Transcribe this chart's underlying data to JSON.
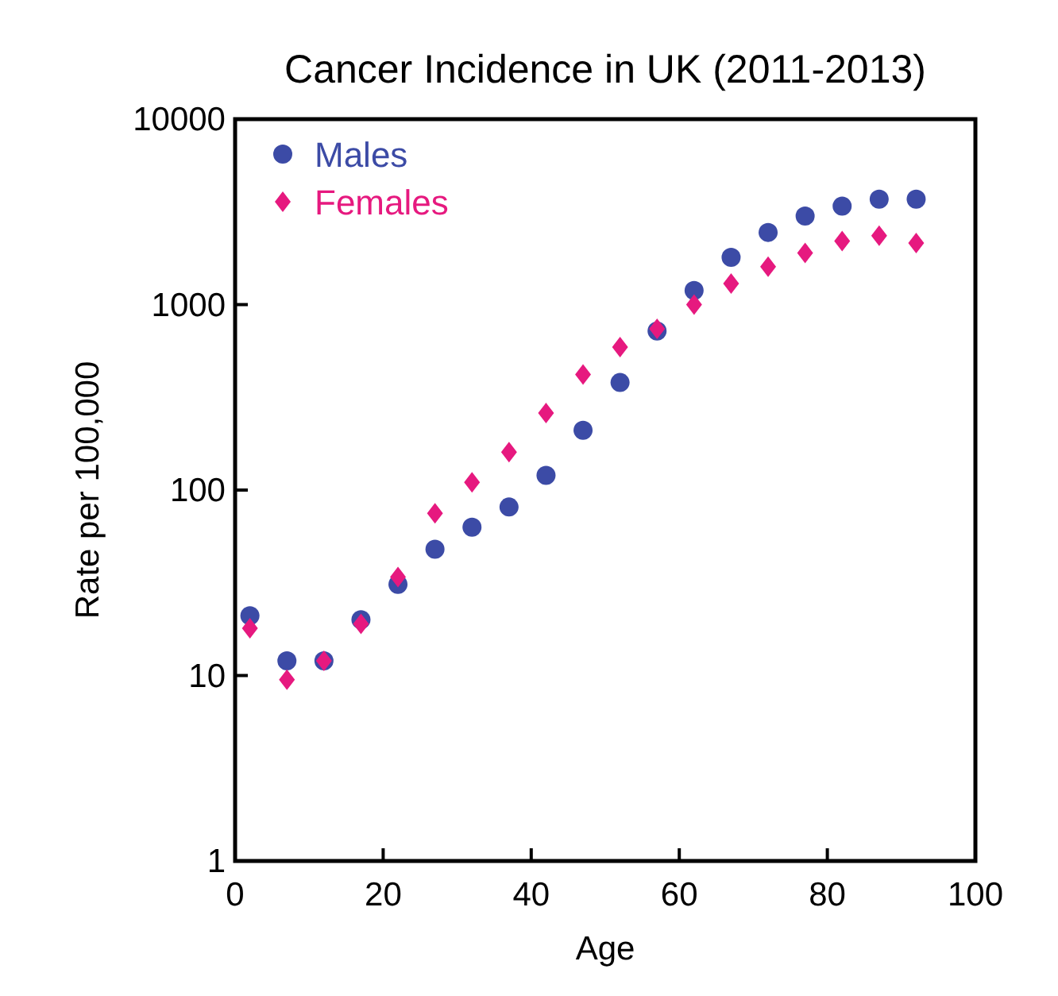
{
  "chart_data": {
    "type": "scatter",
    "title": "Cancer Incidence in UK (2011-2013)",
    "xlabel": "Age",
    "ylabel": "Rate per 100,000",
    "x": [
      2,
      7,
      12,
      17,
      22,
      27,
      32,
      37,
      42,
      47,
      52,
      57,
      62,
      67,
      72,
      77,
      82,
      87,
      92
    ],
    "series": [
      {
        "name": "Males",
        "color": "#3c4ba6",
        "marker": "circle",
        "values": [
          21,
          12,
          12,
          20,
          31,
          48,
          63,
          81,
          120,
          210,
          380,
          720,
          1190,
          1800,
          2450,
          3000,
          3400,
          3700,
          3700
        ]
      },
      {
        "name": "Females",
        "color": "#e6197f",
        "marker": "diamond",
        "values": [
          18,
          9.5,
          12,
          19,
          34,
          75,
          110,
          160,
          260,
          420,
          590,
          740,
          1000,
          1300,
          1600,
          1900,
          2200,
          2350,
          2150
        ]
      }
    ],
    "log": "y",
    "xlim": [
      0,
      100
    ],
    "xticks": [
      0,
      20,
      40,
      60,
      80,
      100
    ],
    "ylim": [
      1,
      10000
    ],
    "yticks": [
      1,
      10,
      100,
      1000,
      10000
    ],
    "grid": false,
    "legend": "top left"
  }
}
